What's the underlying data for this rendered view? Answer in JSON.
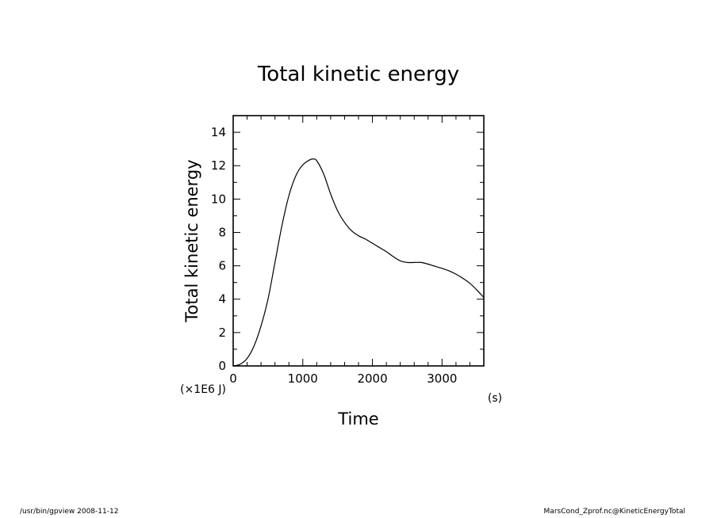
{
  "chart_data": {
    "type": "line",
    "title": "Total kinetic energy",
    "xlabel": "Time",
    "ylabel": "Total kinetic energy",
    "x_unit": "(s)",
    "y_unit": "(×1E6 J)",
    "xlim": [
      0,
      3600
    ],
    "ylim": [
      0,
      15
    ],
    "x_ticks": [
      0,
      1000,
      2000,
      3000
    ],
    "y_ticks": [
      0,
      2,
      4,
      6,
      8,
      10,
      12,
      14
    ],
    "x_tick_labels": [
      "0",
      "1000",
      "2000",
      "3000"
    ],
    "y_tick_labels": [
      "0",
      "2",
      "4",
      "6",
      "8",
      "10",
      "12",
      "14"
    ],
    "grid": false,
    "series": [
      {
        "x": [
          0,
          100,
          200,
          300,
          400,
          500,
          600,
          700,
          800,
          900,
          1000,
          1100,
          1150,
          1200,
          1300,
          1400,
          1500,
          1600,
          1700,
          1800,
          1900,
          2000,
          2100,
          2200,
          2300,
          2400,
          2500,
          2600,
          2700,
          2800,
          2900,
          3000,
          3100,
          3200,
          3300,
          3400,
          3500,
          3600
        ],
        "y": [
          0,
          0.1,
          0.45,
          1.2,
          2.4,
          4.0,
          6.2,
          8.4,
          10.2,
          11.4,
          12.05,
          12.35,
          12.4,
          12.3,
          11.5,
          10.3,
          9.3,
          8.6,
          8.1,
          7.8,
          7.6,
          7.35,
          7.1,
          6.85,
          6.55,
          6.3,
          6.2,
          6.2,
          6.2,
          6.1,
          5.97,
          5.85,
          5.7,
          5.5,
          5.25,
          4.95,
          4.55,
          4.1
        ]
      }
    ]
  },
  "footer": {
    "left": "/usr/bin/gpview   2008-11-12",
    "right": "MarsCond_Zprof.nc@KineticEnergyTotal"
  }
}
